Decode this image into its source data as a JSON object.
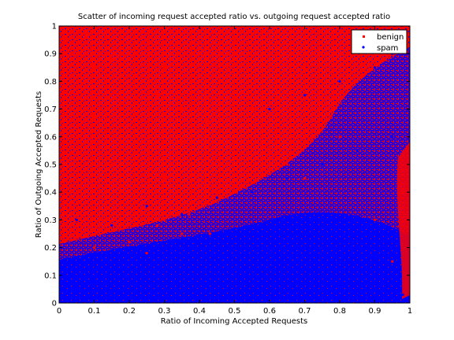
{
  "chart_data": {
    "type": "scatter",
    "title": "Scatter of incoming request accepted ratio vs. outgoing request accepted ratio",
    "xlabel": "Ratio of Incoming Accepted Requests",
    "ylabel": "Ratio of Outgoing Accepted Requests",
    "xlim": [
      0,
      1
    ],
    "ylim": [
      0,
      1
    ],
    "x_ticks": [
      "0",
      "0.1",
      "0.2",
      "0.3",
      "0.4",
      "0.5",
      "0.6",
      "0.7",
      "0.8",
      "0.9",
      "1"
    ],
    "y_ticks": [
      "0",
      "0.1",
      "0.2",
      "0.3",
      "0.4",
      "0.5",
      "0.6",
      "0.7",
      "0.8",
      "0.9",
      "1"
    ],
    "grid": false,
    "legend_position": "top-right",
    "series": [
      {
        "name": "benign",
        "color": "#ff0000",
        "marker": "point",
        "x": [
          0.02,
          0.05,
          0.08,
          0.1,
          0.12,
          0.15,
          0.18,
          0.2,
          0.22,
          0.25,
          0.28,
          0.3,
          0.33,
          0.35,
          0.38,
          0.4,
          0.42,
          0.45,
          0.48,
          0.5,
          0.52,
          0.55,
          0.6,
          0.65,
          0.7,
          0.05,
          0.1,
          0.15,
          0.2,
          0.25,
          0.3,
          0.35,
          0.4,
          0.45,
          0.03,
          0.08,
          0.13,
          0.18,
          0.23,
          0.28,
          0.32,
          0.37,
          0.43,
          0.05,
          0.1,
          0.15,
          0.2,
          0.25,
          0.3,
          0.35,
          0.5,
          0.6,
          0.7,
          0.8,
          0.9,
          0.95,
          0.98
        ],
        "y": [
          0.95,
          0.9,
          0.97,
          0.85,
          0.92,
          0.88,
          0.98,
          0.8,
          0.9,
          0.95,
          0.75,
          0.85,
          0.93,
          0.7,
          0.8,
          0.9,
          0.65,
          0.75,
          0.85,
          0.5,
          0.6,
          0.7,
          0.55,
          0.5,
          0.45,
          0.6,
          0.67,
          0.5,
          0.62,
          0.55,
          0.45,
          0.58,
          0.48,
          0.4,
          0.35,
          0.42,
          0.3,
          0.38,
          0.33,
          0.28,
          0.4,
          0.32,
          0.25,
          0.25,
          0.2,
          0.28,
          0.22,
          0.18,
          0.3,
          0.25,
          0.95,
          0.9,
          0.85,
          0.6,
          0.3,
          0.15,
          0.4
        ]
      },
      {
        "name": "spam",
        "color": "#0000ff",
        "marker": "dot",
        "x": [
          0.02,
          0.05,
          0.1,
          0.15,
          0.2,
          0.25,
          0.3,
          0.35,
          0.4,
          0.45,
          0.5,
          0.55,
          0.6,
          0.65,
          0.7,
          0.75,
          0.8,
          0.85,
          0.9,
          0.95,
          0.98,
          0.1,
          0.2,
          0.3,
          0.4,
          0.5,
          0.6,
          0.7,
          0.8,
          0.9,
          0.05,
          0.15,
          0.25,
          0.35,
          0.45,
          0.55,
          0.65,
          0.75,
          0.85,
          0.95,
          0.6,
          0.7,
          0.8,
          0.9,
          0.95,
          0.97,
          0.99
        ],
        "y": [
          0.02,
          0.05,
          0.08,
          0.03,
          0.1,
          0.06,
          0.12,
          0.04,
          0.09,
          0.07,
          0.02,
          0.11,
          0.05,
          0.08,
          0.03,
          0.1,
          0.06,
          0.04,
          0.07,
          0.05,
          0.03,
          0.18,
          0.15,
          0.2,
          0.17,
          0.22,
          0.19,
          0.25,
          0.21,
          0.16,
          0.3,
          0.28,
          0.35,
          0.32,
          0.38,
          0.4,
          0.45,
          0.5,
          0.55,
          0.6,
          0.7,
          0.75,
          0.8,
          0.85,
          0.9,
          0.95,
          0.98
        ]
      }
    ]
  }
}
